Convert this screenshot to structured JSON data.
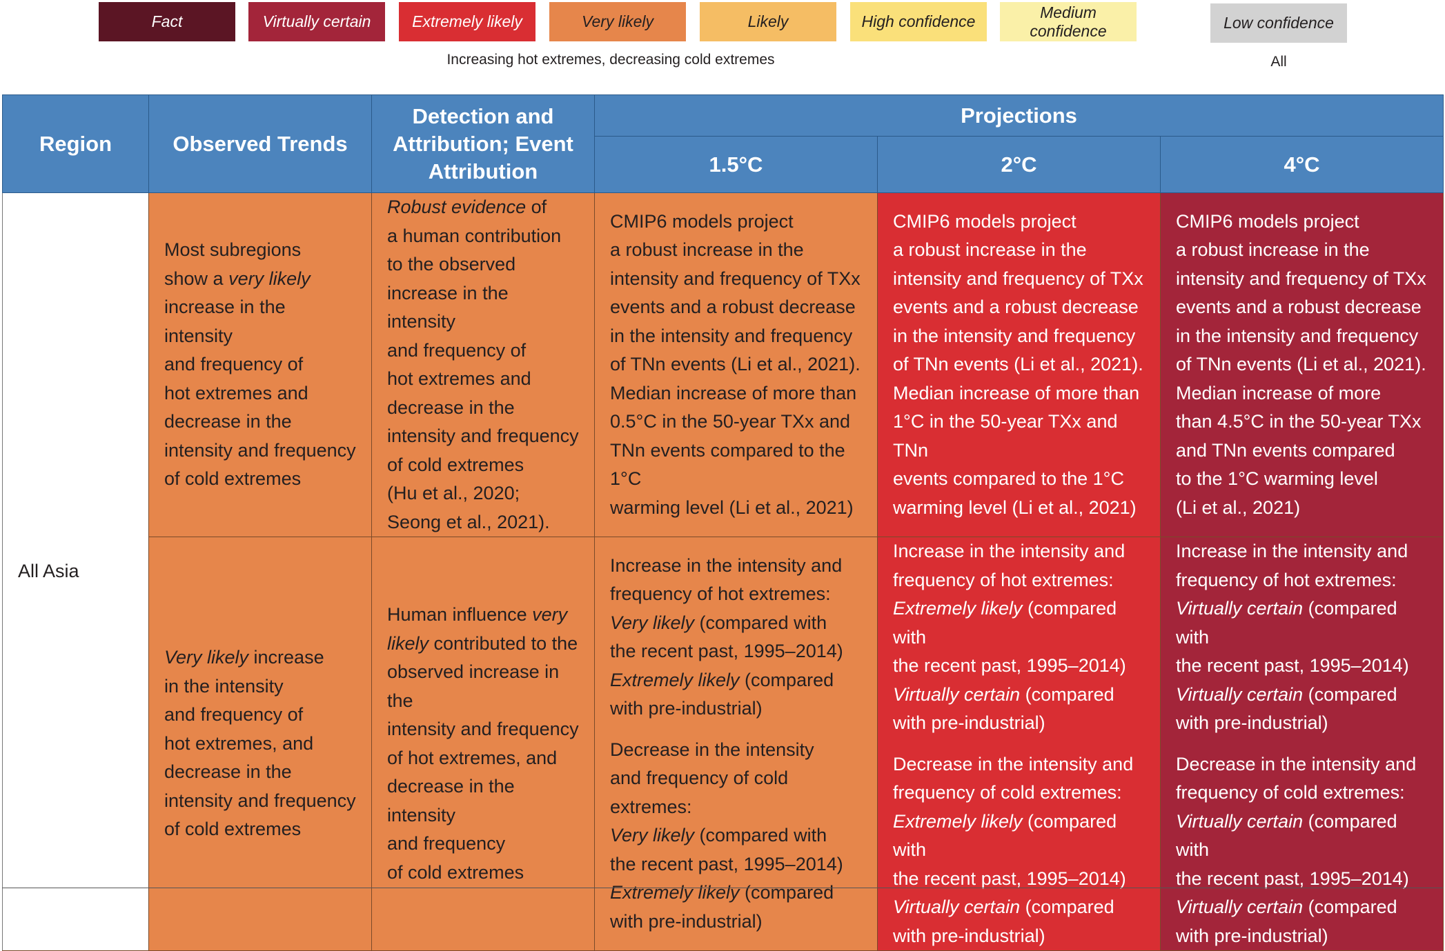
{
  "legend": {
    "items": [
      {
        "label": "Fact",
        "color": "#5b1524",
        "text_color": "#ffffff"
      },
      {
        "label": "Virtually certain",
        "color": "#a3253a",
        "text_color": "#ffffff"
      },
      {
        "label": "Extremely likely",
        "color": "#d92e33",
        "text_color": "#ffffff"
      },
      {
        "label": "Very likely",
        "color": "#e6864b",
        "text_color": "#231f20"
      },
      {
        "label": "Likely",
        "color": "#f5bd64",
        "text_color": "#231f20"
      },
      {
        "label": "High confidence",
        "color": "#fae07a",
        "text_color": "#231f20"
      },
      {
        "label": "Medium confidence",
        "color": "#faf0a8",
        "text_color": "#231f20"
      },
      {
        "label": "Low confidence",
        "color": "#d2d2d2",
        "text_color": "#231f20"
      }
    ],
    "caption_main": "Increasing hot extremes, decreasing cold extremes",
    "caption_low": "All"
  },
  "table": {
    "headers": {
      "region": "Region",
      "observed": "Observed Trends",
      "detection": "Detection and Attribution; Event Attribution",
      "projections": "Projections",
      "p15": "1.5°C",
      "p2": "2°C",
      "p4": "4°C"
    },
    "region_name": "All Asia",
    "row1": {
      "observed": [
        "Most subregions",
        "show a ",
        "very likely",
        " increase in the intensity",
        "and frequency of",
        "hot extremes and",
        "decrease in the",
        "intensity and frequency",
        "of cold extremes"
      ],
      "detection": [
        "Robust evidence",
        " of",
        "a human contribution",
        "to the observed",
        "increase in the intensity",
        "and frequency of",
        "hot extremes and",
        "decrease in the",
        "intensity and frequency",
        "of cold extremes",
        "(Hu et al., 2020;",
        "Seong et al., 2021)."
      ],
      "p15": [
        "CMIP6 models project",
        "a robust increase in the",
        "intensity and frequency of TXx",
        "events and a robust decrease",
        "in the intensity and frequency",
        "of TNn events (Li et al., 2021).",
        "Median increase of more than",
        "0.5°C in the 50-year TXx and",
        "TNn events compared to the 1°C",
        "warming level (Li et al., 2021)"
      ],
      "p2": [
        "CMIP6 models project",
        "a robust increase in the",
        "intensity and frequency of TXx",
        "events and a robust decrease",
        "in the intensity and frequency",
        "of TNn events (Li et al., 2021).",
        "Median increase of more than",
        "1°C in the 50-year TXx and TNn",
        "events compared to the 1°C",
        "warming level (Li et al., 2021)"
      ],
      "p4": [
        "CMIP6 models project",
        "a robust increase in the",
        "intensity and frequency of TXx",
        "events and a robust decrease",
        "in the intensity and frequency",
        "of TNn events (Li et al., 2021).",
        "Median increase of more",
        "than 4.5°C in the 50-year TXx",
        "and TNn events compared",
        "to the 1°C warming level",
        "(Li et al., 2021)"
      ]
    },
    "row2": {
      "observed": [
        "Very likely",
        " increase",
        "in the intensity",
        "and frequency of",
        "hot extremes, and",
        "decrease in the",
        "intensity and frequency",
        "of cold extremes"
      ],
      "detection": [
        "Human influence ",
        "very",
        "likely",
        " contributed to the",
        "observed increase in the",
        "intensity and frequency",
        "of hot extremes, and",
        "decrease in the intensity",
        "and frequency",
        "of cold extremes"
      ],
      "p15": {
        "hot": [
          "Increase in the intensity and",
          "frequency of hot extremes:",
          "Very likely",
          " (compared with",
          "the recent past, 1995–2014)",
          "Extremely likely",
          " (compared",
          "with pre-industrial)"
        ],
        "cold": [
          "Decrease in the intensity",
          "and frequency of cold extremes:",
          "Very likely",
          " (compared with",
          "the recent past, 1995–2014)",
          "Extremely likely",
          " (compared",
          "with pre-industrial)"
        ]
      },
      "p2": {
        "hot": [
          "Increase in the intensity and",
          "frequency of hot extremes:",
          "Extremely likely",
          " (compared with",
          "the recent past, 1995–2014)",
          "Virtually certain",
          " (compared",
          "with pre-industrial)"
        ],
        "cold": [
          "Decrease in the intensity and",
          "frequency of cold extremes:",
          "Extremely likely",
          " (compared with",
          "the recent past, 1995–2014)",
          "Virtually certain",
          " (compared",
          "with pre-industrial)"
        ]
      },
      "p4": {
        "hot": [
          "Increase in the intensity and",
          "frequency of hot extremes:",
          "Virtually certain",
          " (compared with",
          "the recent past, 1995–2014)",
          "Virtually certain",
          " (compared",
          "with pre-industrial)"
        ],
        "cold": [
          "Decrease in the intensity and",
          "frequency of cold extremes:",
          "Virtually certain",
          " (compared with",
          "the recent past, 1995–2014)",
          "Virtually certain",
          " (compared",
          "with pre-industrial)"
        ]
      }
    }
  }
}
